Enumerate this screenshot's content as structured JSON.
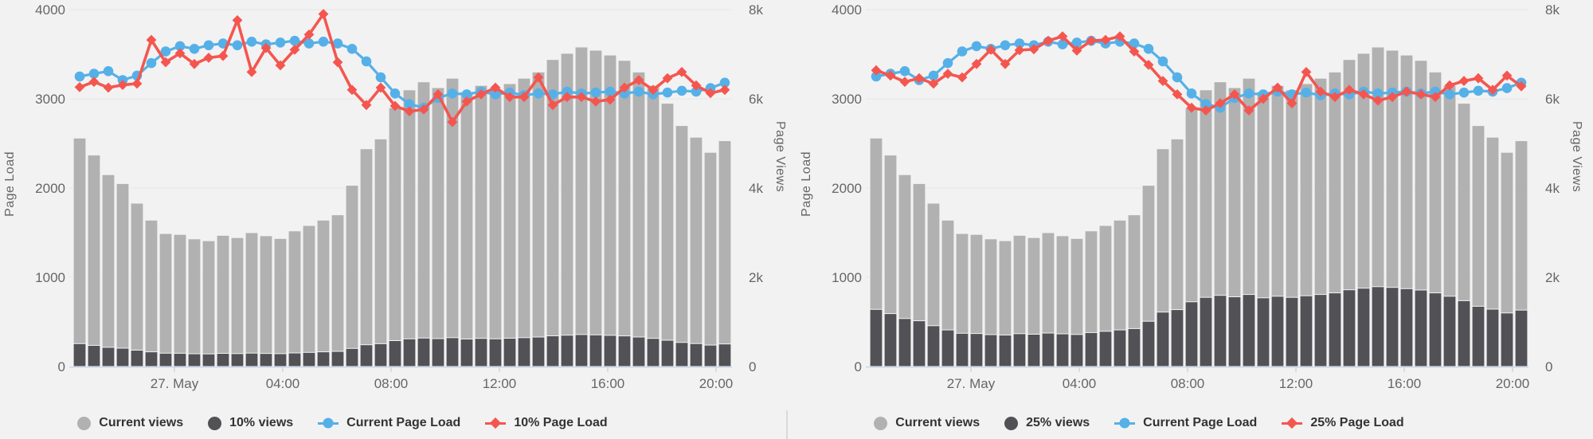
{
  "page": {
    "background": "#f2f2f2",
    "divider_color": "#d9d9d9"
  },
  "axes_style": {
    "grid_color": "#e6e6e6",
    "axis_line_color": "#ccd6eb",
    "tick_label_color": "#666666",
    "axis_title_color": "#666666",
    "legend_text_color": "#333333",
    "bar_stroke": "#f2f2f2"
  },
  "chart_data": [
    {
      "type": "mixed-column-line",
      "title": "",
      "x_tick_labels": [
        "27. May",
        "04:00",
        "08:00",
        "12:00",
        "16:00",
        "20:00"
      ],
      "y_left_axis": {
        "label": "Page Load",
        "min": 0,
        "max": 4000,
        "tick_labels": [
          "0",
          "1000",
          "2000",
          "3000",
          "4000"
        ]
      },
      "y_right_axis": {
        "label": "Page Views",
        "min": 0,
        "max": 8000,
        "tick_labels": [
          "0",
          "2k",
          "4k",
          "6k",
          "8k"
        ]
      },
      "legend_position": "bottom",
      "grid": "horizontal",
      "series": [
        {
          "name": "Current views",
          "type": "column",
          "axis": "right",
          "color": "#b1b1b1",
          "marker": "circle",
          "values": [
            5120,
            4740,
            4300,
            4100,
            3660,
            3280,
            2980,
            2960,
            2860,
            2820,
            2940,
            2890,
            3000,
            2930,
            2870,
            3040,
            3160,
            3280,
            3400,
            4060,
            4880,
            5100,
            5800,
            6200,
            6380,
            6250,
            6460,
            6160,
            6300,
            6200,
            6340,
            6460,
            6600,
            6880,
            7020,
            7160,
            7090,
            6980,
            6860,
            6600,
            6300,
            5900,
            5400,
            5140,
            4800,
            5060
          ]
        },
        {
          "name": "10% views",
          "type": "column",
          "axis": "right",
          "color": "#515156",
          "marker": "circle",
          "values": [
            512,
            474,
            430,
            410,
            366,
            328,
            298,
            296,
            286,
            282,
            294,
            289,
            300,
            293,
            287,
            304,
            316,
            328,
            340,
            406,
            488,
            510,
            580,
            620,
            638,
            625,
            646,
            616,
            630,
            620,
            634,
            646,
            660,
            688,
            702,
            716,
            709,
            698,
            686,
            660,
            630,
            590,
            540,
            514,
            480,
            506
          ]
        },
        {
          "name": "Current Page Load",
          "type": "line",
          "axis": "left",
          "color": "#56b0e8",
          "marker": "circle",
          "values": [
            3250,
            3280,
            3310,
            3210,
            3260,
            3400,
            3530,
            3590,
            3560,
            3600,
            3620,
            3600,
            3640,
            3610,
            3630,
            3650,
            3620,
            3640,
            3620,
            3560,
            3420,
            3240,
            3060,
            2940,
            2900,
            3010,
            3060,
            3050,
            3080,
            3050,
            3070,
            3040,
            3060,
            3050,
            3080,
            3060,
            3070,
            3080,
            3060,
            3080,
            3050,
            3070,
            3090,
            3080,
            3120,
            3180
          ]
        },
        {
          "name": "10% Page Load",
          "type": "line",
          "axis": "left",
          "color": "#f4564f",
          "marker": "diamond",
          "values": [
            3130,
            3190,
            3125,
            3155,
            3170,
            3660,
            3410,
            3510,
            3390,
            3460,
            3480,
            3880,
            3300,
            3570,
            3375,
            3550,
            3720,
            3950,
            3410,
            3100,
            2930,
            3125,
            2920,
            2860,
            2880,
            3050,
            2740,
            2970,
            3050,
            3125,
            3020,
            3020,
            3240,
            2930,
            3020,
            3020,
            2970,
            2990,
            3125,
            3210,
            3100,
            3230,
            3300,
            3150,
            3063,
            3100
          ]
        }
      ]
    },
    {
      "type": "mixed-column-line",
      "title": "",
      "x_tick_labels": [
        "27. May",
        "04:00",
        "08:00",
        "12:00",
        "16:00",
        "20:00"
      ],
      "y_left_axis": {
        "label": "Page Load",
        "min": 0,
        "max": 4000,
        "tick_labels": [
          "0",
          "1000",
          "2000",
          "3000",
          "4000"
        ]
      },
      "y_right_axis": {
        "label": "Page Views",
        "min": 0,
        "max": 8000,
        "tick_labels": [
          "0",
          "2k",
          "4k",
          "6k",
          "8k"
        ]
      },
      "legend_position": "bottom",
      "grid": "horizontal",
      "series": [
        {
          "name": "Current views",
          "type": "column",
          "axis": "right",
          "color": "#b1b1b1",
          "marker": "circle",
          "values": [
            5120,
            4740,
            4300,
            4100,
            3660,
            3280,
            2980,
            2960,
            2860,
            2820,
            2940,
            2890,
            3000,
            2930,
            2870,
            3040,
            3160,
            3280,
            3400,
            4060,
            4880,
            5100,
            5800,
            6200,
            6380,
            6250,
            6460,
            6160,
            6300,
            6200,
            6340,
            6460,
            6600,
            6880,
            7020,
            7160,
            7090,
            6980,
            6860,
            6600,
            6300,
            5900,
            5400,
            5140,
            4800,
            5060
          ]
        },
        {
          "name": "25% views",
          "type": "column",
          "axis": "right",
          "color": "#515156",
          "marker": "circle",
          "values": [
            1280,
            1185,
            1075,
            1025,
            915,
            820,
            745,
            740,
            715,
            705,
            735,
            723,
            750,
            733,
            718,
            760,
            790,
            820,
            850,
            1015,
            1220,
            1275,
            1450,
            1550,
            1595,
            1563,
            1615,
            1540,
            1575,
            1550,
            1585,
            1615,
            1650,
            1720,
            1755,
            1790,
            1773,
            1745,
            1715,
            1650,
            1575,
            1475,
            1350,
            1285,
            1200,
            1265
          ]
        },
        {
          "name": "Current Page Load",
          "type": "line",
          "axis": "left",
          "color": "#56b0e8",
          "marker": "circle",
          "values": [
            3250,
            3280,
            3310,
            3210,
            3260,
            3400,
            3530,
            3590,
            3560,
            3600,
            3620,
            3600,
            3640,
            3610,
            3630,
            3650,
            3620,
            3640,
            3620,
            3560,
            3420,
            3240,
            3060,
            2940,
            2900,
            3010,
            3060,
            3050,
            3080,
            3050,
            3070,
            3040,
            3060,
            3050,
            3080,
            3060,
            3070,
            3080,
            3060,
            3080,
            3050,
            3070,
            3090,
            3080,
            3120,
            3180
          ]
        },
        {
          "name": "25% Page Load",
          "type": "line",
          "axis": "left",
          "color": "#f4564f",
          "marker": "diamond",
          "values": [
            3320,
            3260,
            3190,
            3230,
            3170,
            3280,
            3240,
            3390,
            3550,
            3390,
            3545,
            3555,
            3650,
            3700,
            3540,
            3650,
            3660,
            3700,
            3530,
            3380,
            3200,
            3050,
            2900,
            2870,
            2950,
            3050,
            2870,
            3000,
            3125,
            2950,
            3300,
            3080,
            3020,
            3100,
            3050,
            2980,
            3020,
            3080,
            3050,
            3020,
            3150,
            3200,
            3230,
            3100,
            3260,
            3140
          ]
        }
      ]
    }
  ]
}
